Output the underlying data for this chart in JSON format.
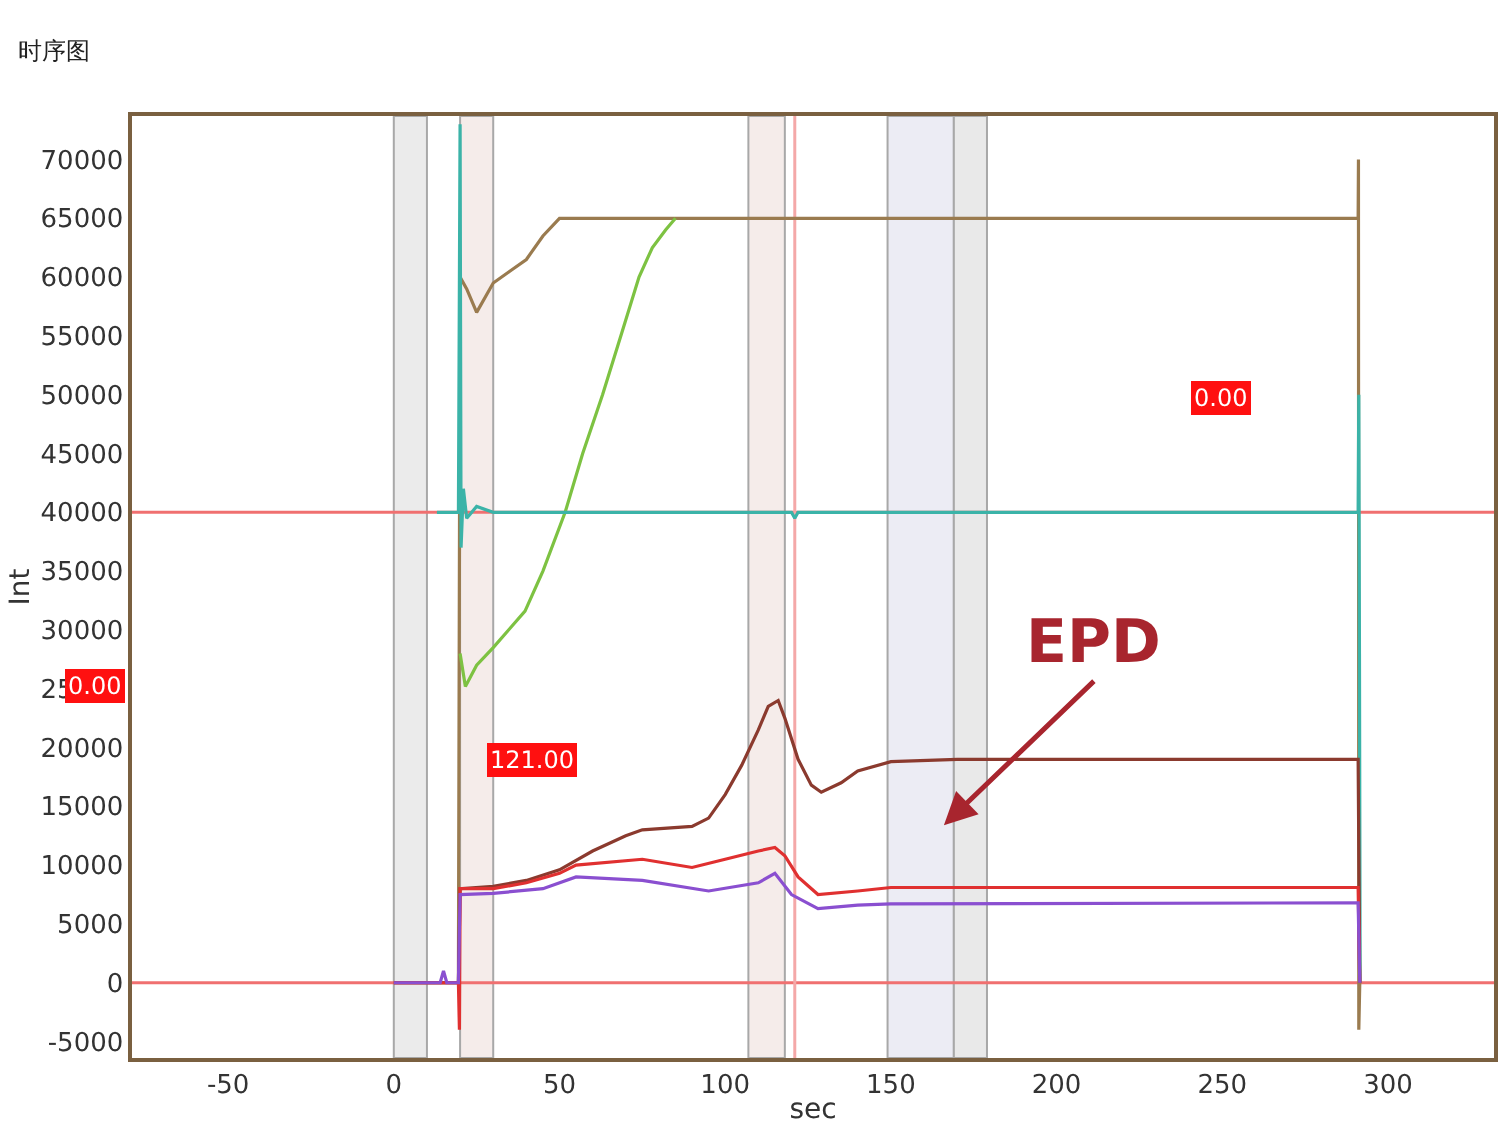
{
  "chart_data": {
    "type": "line",
    "title": "时序图",
    "xlabel": "sec",
    "ylabel": "Int",
    "xlim": [
      -79,
      332
    ],
    "xticks": [
      -50,
      0,
      50,
      100,
      150,
      200,
      250,
      300
    ],
    "ylim": [
      -6400,
      73700
    ],
    "yticks": [
      -5000,
      0,
      5000,
      10000,
      15000,
      20000,
      25000,
      30000,
      35000,
      40000,
      45000,
      50000,
      55000,
      60000,
      65000,
      70000
    ],
    "line_style": "solid",
    "series": [
      {
        "color": "#9a7b4f",
        "x": [
          0,
          19.5,
          20,
          22,
          25,
          30,
          35,
          40,
          45,
          50,
          291,
          291.1,
          291.2,
          291.5
        ],
        "values": [
          0,
          0,
          60000,
          59000,
          57000,
          59500,
          60500,
          61500,
          63500,
          65000,
          65000,
          70000,
          -4000,
          0
        ]
      },
      {
        "color": "#7dc242",
        "x": [
          20,
          21.6,
          25,
          30,
          39.6,
          45,
          51.7,
          57,
          63,
          68.5,
          74,
          78,
          82,
          85
        ],
        "values": [
          28000,
          25200,
          27000,
          28500,
          31600,
          35000,
          40000,
          45000,
          50000,
          55000,
          60000,
          62500,
          64000,
          65000
        ]
      },
      {
        "color": "#3bb3a8",
        "x": [
          13,
          19.5,
          20,
          20.3,
          21,
          22,
          25,
          30,
          120,
          121,
          122,
          291,
          291.2,
          291.4,
          291.6
        ],
        "values": [
          40000,
          40000,
          73000,
          37000,
          42000,
          39500,
          40500,
          40000,
          40000,
          39500,
          40000,
          40000,
          50000,
          28000,
          0
        ]
      },
      {
        "color": "#8b3a2e",
        "x": [
          0,
          19.5,
          20,
          30,
          40,
          50,
          60,
          70,
          75,
          90,
          95,
          100,
          105,
          110,
          113,
          116,
          118,
          122,
          126,
          129,
          135,
          140,
          150,
          170,
          291,
          291.5
        ],
        "values": [
          0,
          0,
          8000,
          8200,
          8700,
          9600,
          11200,
          12500,
          13000,
          13300,
          14000,
          16000,
          18500,
          21500,
          23500,
          24000,
          22500,
          19000,
          16800,
          16200,
          17000,
          18000,
          18800,
          19000,
          19000,
          0
        ]
      },
      {
        "color": "#e03030",
        "x": [
          0,
          19.5,
          19.8,
          20,
          30,
          40,
          50,
          55,
          75,
          90,
          100,
          110,
          115,
          118,
          122,
          128,
          140,
          150,
          291,
          291.5
        ],
        "values": [
          0,
          0,
          -4000,
          8000,
          8000,
          8500,
          9300,
          10000,
          10500,
          9800,
          10500,
          11200,
          11500,
          10800,
          9000,
          7500,
          7800,
          8100,
          8100,
          0
        ]
      },
      {
        "color": "#8a4fd0",
        "x": [
          0,
          14,
          15,
          16,
          19.5,
          20,
          30,
          45,
          55,
          75,
          95,
          110,
          115,
          120,
          128,
          140,
          150,
          291,
          291.5
        ],
        "values": [
          0,
          0,
          1000,
          0,
          0,
          7500,
          7600,
          8000,
          9000,
          8700,
          7800,
          8500,
          9300,
          7500,
          6300,
          6600,
          6700,
          6800,
          0
        ]
      }
    ],
    "ref_lines": [
      {
        "axis": "y",
        "value": 40000,
        "color": "#f07070"
      },
      {
        "axis": "y",
        "value": 0,
        "color": "#f07070"
      },
      {
        "axis": "x",
        "value": 121,
        "color": "#f4a8a8"
      }
    ],
    "bands": [
      {
        "axis": "x",
        "from": 0,
        "to": 10,
        "color": "#ebebeb"
      },
      {
        "axis": "x",
        "from": 20,
        "to": 30,
        "color": "#f5ecea"
      },
      {
        "axis": "x",
        "from": 107,
        "to": 118,
        "color": "#f5ecea"
      },
      {
        "axis": "x",
        "from": 149,
        "to": 169,
        "color": "#ececf4"
      },
      {
        "axis": "x",
        "from": 169,
        "to": 179,
        "color": "#e9e9e9"
      }
    ],
    "annotations": [
      "0.00",
      "121.00",
      "0.00",
      {
        "text": "EPD",
        "x": 166,
        "y": 13400
      }
    ]
  }
}
